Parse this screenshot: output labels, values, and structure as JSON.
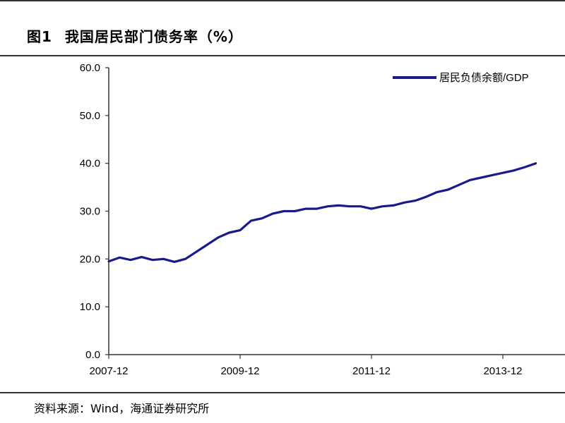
{
  "header": {
    "figure_label": "图1",
    "title": "我国居民部门债务率（%）"
  },
  "footer": {
    "source": "资料来源：Wind，海通证券研究所"
  },
  "colors": {
    "series": "#1a1a8c",
    "axis": "#333333"
  },
  "chart_data": {
    "type": "line",
    "title": "我国居民部门债务率（%）",
    "xlabel": "",
    "ylabel": "",
    "ylim": [
      0,
      60
    ],
    "yticks": [
      "0.0",
      "10.0",
      "20.0",
      "30.0",
      "40.0",
      "50.0",
      "60.0"
    ],
    "xticks": [
      "2007-12",
      "2009-12",
      "2011-12",
      "2013-12"
    ],
    "grid": false,
    "legend": "top-right",
    "series": [
      {
        "name": "居民负债余额/GDP",
        "x": [
          "2007-12",
          "2008-02",
          "2008-04",
          "2008-06",
          "2008-08",
          "2008-10",
          "2008-12",
          "2009-02",
          "2009-04",
          "2009-06",
          "2009-08",
          "2009-10",
          "2009-12",
          "2010-02",
          "2010-04",
          "2010-06",
          "2010-08",
          "2010-10",
          "2010-12",
          "2011-02",
          "2011-04",
          "2011-06",
          "2011-08",
          "2011-10",
          "2011-12",
          "2012-02",
          "2012-04",
          "2012-06",
          "2012-08",
          "2012-10",
          "2012-12",
          "2013-02",
          "2013-04",
          "2013-06",
          "2013-08",
          "2013-10",
          "2013-12",
          "2014-02",
          "2014-04",
          "2014-06"
        ],
        "values": [
          19.5,
          20.3,
          19.8,
          20.4,
          19.8,
          20.0,
          19.4,
          20.0,
          21.5,
          23.0,
          24.5,
          25.5,
          26.0,
          28.0,
          28.5,
          29.5,
          30.0,
          30.0,
          30.5,
          30.5,
          31.0,
          31.2,
          31.0,
          31.0,
          30.5,
          31.0,
          31.2,
          31.8,
          32.2,
          33.0,
          34.0,
          34.5,
          35.5,
          36.5,
          37.0,
          37.5,
          38.0,
          38.5,
          39.2,
          40.0
        ]
      }
    ]
  }
}
